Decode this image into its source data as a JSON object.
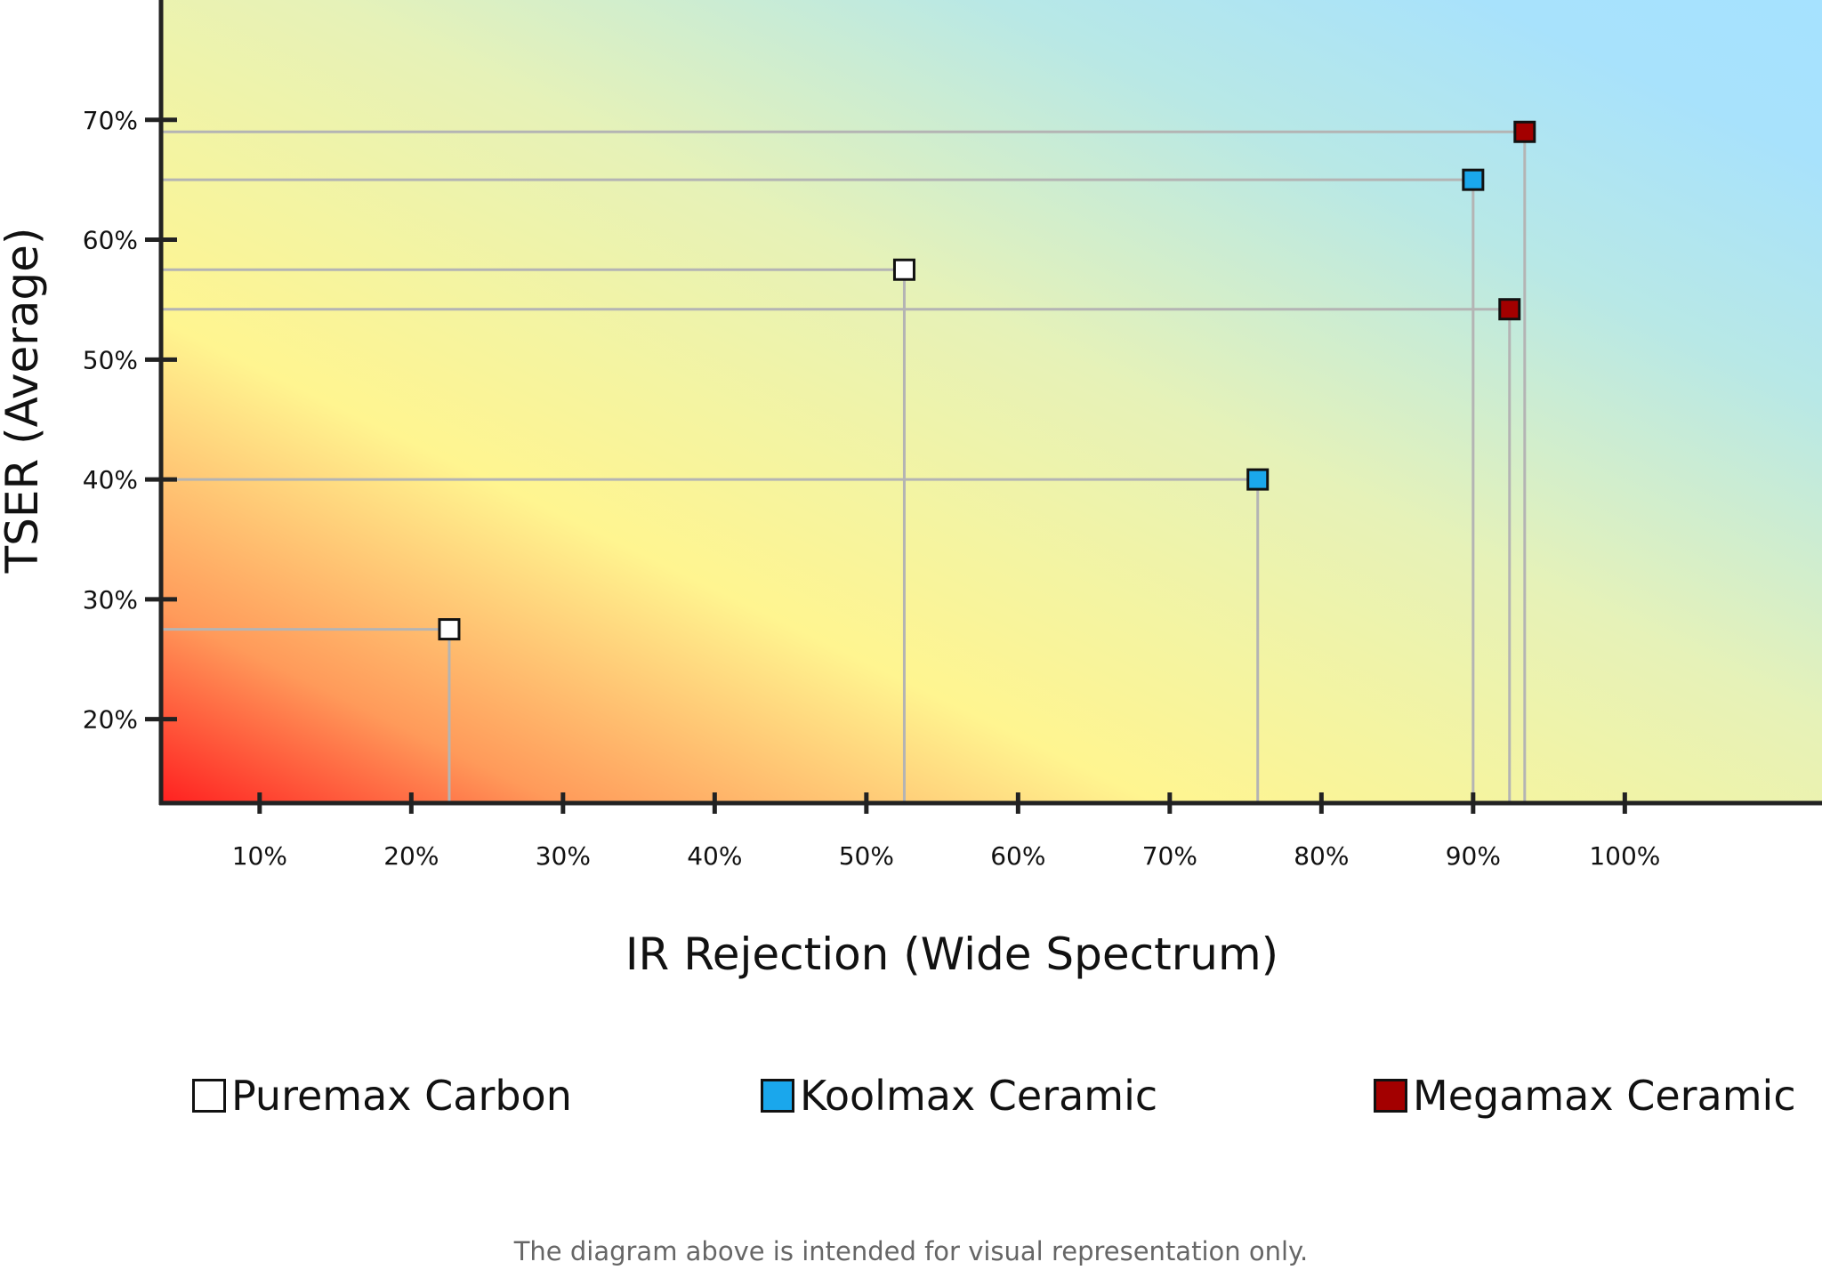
{
  "chart_data": {
    "type": "scatter",
    "xlabel": "IR Rejection (Wide Spectrum)",
    "ylabel": "TSER (Average)",
    "xlim": [
      3.5,
      113
    ],
    "ylim": [
      13,
      80
    ],
    "x_ticks": [
      10,
      20,
      30,
      40,
      50,
      60,
      70,
      80,
      90,
      100
    ],
    "x_tick_labels": [
      "10%",
      "20%",
      "30%",
      "40%",
      "50%",
      "60%",
      "70%",
      "80%",
      "90%",
      "100%"
    ],
    "y_ticks": [
      20,
      30,
      40,
      50,
      60,
      70
    ],
    "y_tick_labels": [
      "20%",
      "30%",
      "40%",
      "50%",
      "60%",
      "70%"
    ],
    "grid": false,
    "guide_lines": true,
    "legend_position": "bottom",
    "series": [
      {
        "name": "Puremax Carbon",
        "color": "#ffffff",
        "points": [
          {
            "x": 22.5,
            "y": 27.5
          },
          {
            "x": 52.5,
            "y": 57.5
          }
        ]
      },
      {
        "name": "Koolmax Ceramic",
        "color": "#1aa7ec",
        "points": [
          {
            "x": 75.8,
            "y": 40
          },
          {
            "x": 90,
            "y": 65
          }
        ]
      },
      {
        "name": "Megamax Ceramic",
        "color": "#a30000",
        "points": [
          {
            "x": 92.4,
            "y": 54.2
          },
          {
            "x": 93.4,
            "y": 69
          }
        ]
      }
    ]
  },
  "footnote": "The diagram above is intended for visual representation only."
}
